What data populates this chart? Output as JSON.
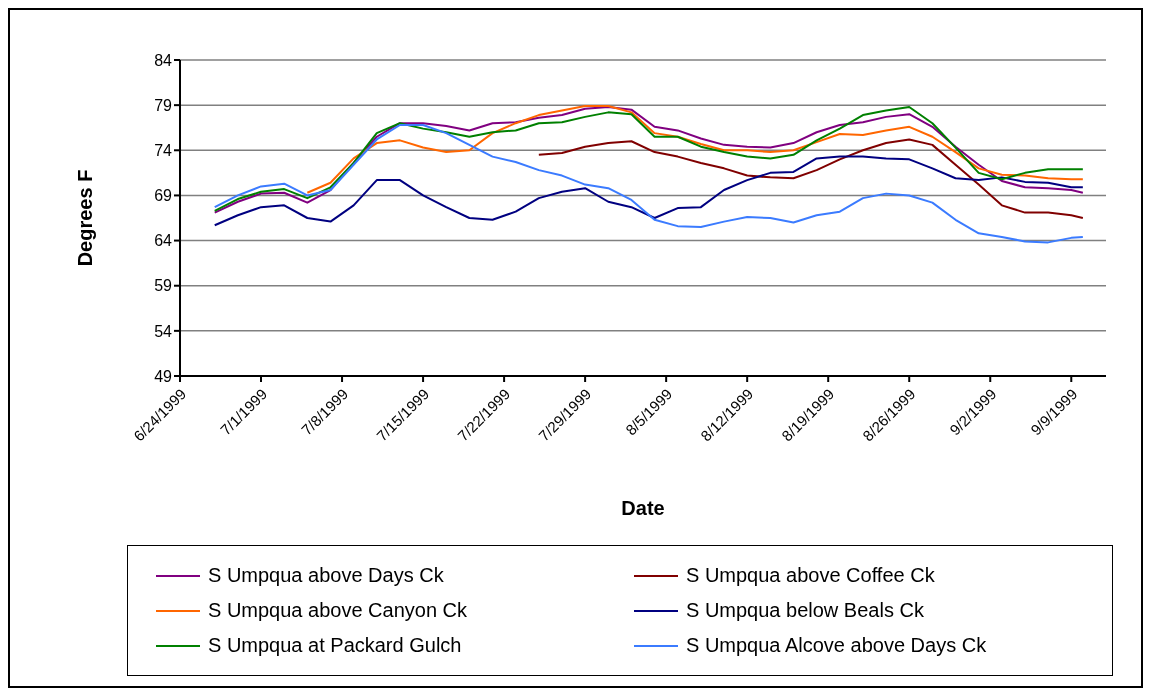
{
  "chart_data": {
    "type": "line",
    "xlabel": "Date",
    "ylabel": "Degrees F",
    "x": [
      "1999-06-27",
      "1999-06-29",
      "1999-07-01",
      "1999-07-03",
      "1999-07-05",
      "1999-07-07",
      "1999-07-09",
      "1999-07-11",
      "1999-07-13",
      "1999-07-15",
      "1999-07-17",
      "1999-07-19",
      "1999-07-21",
      "1999-07-23",
      "1999-07-25",
      "1999-07-27",
      "1999-07-29",
      "1999-07-31",
      "1999-08-02",
      "1999-08-04",
      "1999-08-06",
      "1999-08-08",
      "1999-08-10",
      "1999-08-12",
      "1999-08-14",
      "1999-08-16",
      "1999-08-18",
      "1999-08-20",
      "1999-08-22",
      "1999-08-24",
      "1999-08-26",
      "1999-08-28",
      "1999-08-30",
      "1999-09-01",
      "1999-09-03",
      "1999-09-05",
      "1999-09-07",
      "1999-09-09",
      "1999-09-10"
    ],
    "series": [
      {
        "name": "S Umpqua above Days Ck",
        "color": "#800080",
        "values": [
          67.1,
          68.3,
          69.2,
          69.3,
          68.2,
          69.6,
          72.6,
          75.5,
          77.0,
          77.0,
          76.7,
          76.2,
          77.0,
          77.1,
          77.6,
          77.9,
          78.6,
          78.8,
          78.5,
          76.6,
          76.2,
          75.3,
          74.6,
          74.4,
          74.3,
          74.8,
          76.0,
          76.8,
          77.1,
          77.7,
          78.0,
          76.6,
          74.4,
          72.4,
          70.6,
          69.9,
          69.8,
          69.6,
          69.3
        ]
      },
      {
        "name": "S Umpqua above Coffee Ck",
        "color": "#800000",
        "values": [
          null,
          null,
          null,
          null,
          null,
          null,
          null,
          null,
          null,
          null,
          null,
          null,
          null,
          null,
          73.5,
          73.7,
          74.4,
          74.8,
          75.0,
          73.8,
          73.3,
          72.6,
          72.0,
          71.2,
          71.0,
          70.9,
          71.8,
          73.0,
          74.0,
          74.8,
          75.2,
          74.6,
          72.4,
          70.2,
          67.9,
          67.1,
          67.1,
          66.8,
          66.5
        ]
      },
      {
        "name": "S Umpqua above Canyon Ck",
        "color": "#ff6600",
        "values": [
          null,
          null,
          null,
          null,
          69.3,
          70.4,
          73.1,
          74.8,
          75.1,
          74.3,
          73.8,
          74.0,
          75.9,
          77.0,
          77.9,
          78.4,
          78.9,
          78.9,
          78.2,
          75.9,
          75.5,
          74.7,
          74.0,
          74.0,
          73.8,
          74.0,
          74.9,
          75.8,
          75.7,
          76.2,
          76.6,
          75.5,
          73.8,
          72.0,
          71.3,
          71.2,
          70.9,
          70.8,
          70.8
        ]
      },
      {
        "name": "S Umpqua below Beals Ck",
        "color": "#000080",
        "values": [
          65.7,
          66.8,
          67.7,
          67.9,
          66.5,
          66.1,
          67.9,
          70.7,
          70.7,
          69.0,
          67.7,
          66.5,
          66.3,
          67.2,
          68.7,
          69.4,
          69.8,
          68.3,
          67.7,
          66.5,
          67.6,
          67.7,
          69.6,
          70.7,
          71.5,
          71.6,
          73.1,
          73.3,
          73.3,
          73.1,
          73.0,
          72.0,
          70.9,
          70.7,
          71.0,
          70.5,
          70.4,
          69.9,
          69.9
        ]
      },
      {
        "name": "S Umpqua at Packard Gulch",
        "color": "#008000",
        "values": [
          67.3,
          68.6,
          69.4,
          69.7,
          68.7,
          69.9,
          72.6,
          75.9,
          77.0,
          76.4,
          76.0,
          75.5,
          76.0,
          76.2,
          77.0,
          77.1,
          77.7,
          78.2,
          78.0,
          75.5,
          75.5,
          74.4,
          73.8,
          73.3,
          73.1,
          73.5,
          75.1,
          76.4,
          77.9,
          78.4,
          78.8,
          77.0,
          74.3,
          71.5,
          70.8,
          71.5,
          71.9,
          71.9,
          71.9
        ]
      },
      {
        "name": "S Umpqua Alcove above Days Ck",
        "color": "#3b7bff",
        "values": [
          67.7,
          69.0,
          70.0,
          70.3,
          69.0,
          69.6,
          72.4,
          75.2,
          76.8,
          76.8,
          75.9,
          74.6,
          73.3,
          72.7,
          71.8,
          71.2,
          70.2,
          69.8,
          68.5,
          66.3,
          65.6,
          65.5,
          66.1,
          66.6,
          66.5,
          66.0,
          66.8,
          67.2,
          68.7,
          69.2,
          69.0,
          68.2,
          66.3,
          64.8,
          64.4,
          63.9,
          63.8,
          64.3,
          64.4
        ]
      }
    ],
    "xlim": [
      "1999-06-24",
      "1999-09-12"
    ],
    "xticks": [
      {
        "value": "1999-06-24",
        "label": "6/24/1999"
      },
      {
        "value": "1999-07-01",
        "label": "7/1/1999"
      },
      {
        "value": "1999-07-08",
        "label": "7/8/1999"
      },
      {
        "value": "1999-07-15",
        "label": "7/15/1999"
      },
      {
        "value": "1999-07-22",
        "label": "7/22/1999"
      },
      {
        "value": "1999-07-29",
        "label": "7/29/1999"
      },
      {
        "value": "1999-08-05",
        "label": "8/5/1999"
      },
      {
        "value": "1999-08-12",
        "label": "8/12/1999"
      },
      {
        "value": "1999-08-19",
        "label": "8/19/1999"
      },
      {
        "value": "1999-08-26",
        "label": "8/26/1999"
      },
      {
        "value": "1999-09-02",
        "label": "9/2/1999"
      },
      {
        "value": "1999-09-09",
        "label": "9/9/1999"
      }
    ],
    "ylim": [
      49,
      84
    ],
    "yticks": [
      49,
      54,
      59,
      64,
      69,
      74,
      79,
      84
    ],
    "grid": "y",
    "legend": "bottom",
    "marker": "none",
    "line_style": "solid"
  }
}
